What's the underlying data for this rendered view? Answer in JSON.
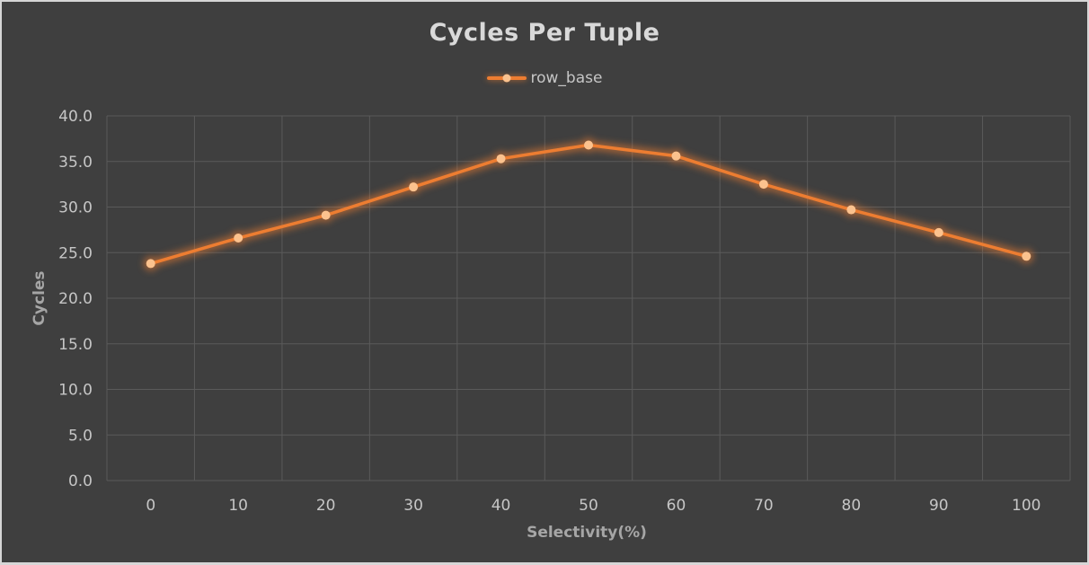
{
  "window": {
    "background": "#3f3f3f",
    "border_color": "#d6d6d6"
  },
  "chart_data": {
    "type": "line",
    "title": "Cycles Per Tuple",
    "xlabel": "Selectivity(%)",
    "ylabel": "Cycles",
    "categories": [
      "0",
      "10",
      "20",
      "30",
      "40",
      "50",
      "60",
      "70",
      "80",
      "90",
      "100"
    ],
    "series": [
      {
        "name": "row_base",
        "values": [
          23.8,
          26.6,
          29.1,
          32.2,
          35.3,
          36.8,
          35.6,
          32.5,
          29.7,
          27.2,
          24.6
        ]
      }
    ],
    "ylim": [
      0,
      40
    ],
    "ytick_step": 5,
    "ytick_labels": [
      "0.0",
      "5.0",
      "10.0",
      "15.0",
      "20.0",
      "25.0",
      "30.0",
      "35.0",
      "40.0"
    ],
    "grid": true,
    "legend_position": "top-center",
    "colors": {
      "line": "#ed7d31",
      "marker_fill": "#fbc28e",
      "glow": "#ed7d31",
      "gridline": "#5a5a5a",
      "title_text": "#d9d9d9",
      "tick_text": "#c6c6c6",
      "axis_title_text": "#a6a6a6",
      "legend_text": "#c6c6c6",
      "background": "#3f3f3f"
    }
  }
}
